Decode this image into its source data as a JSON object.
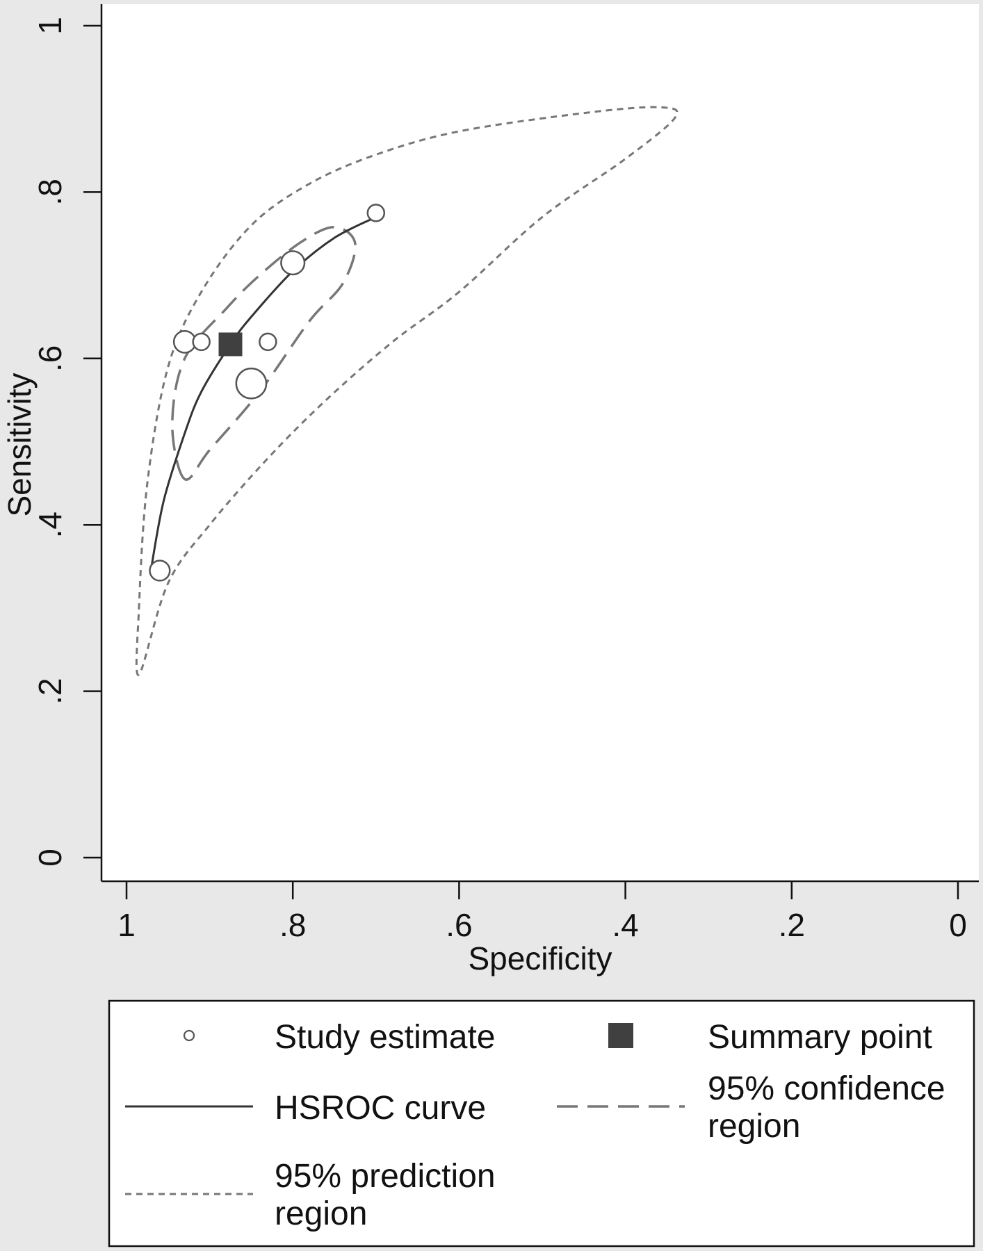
{
  "chart_data": {
    "type": "scatter",
    "title": "",
    "xlabel": "Specificity",
    "ylabel": "Sensitivity",
    "x_reversed": true,
    "xlim": [
      1,
      0
    ],
    "ylim": [
      0,
      1
    ],
    "xticks": [
      1,
      0.8,
      0.6,
      0.4,
      0.2,
      0
    ],
    "xtick_labels": [
      "1",
      ".8",
      ".6",
      ".4",
      ".2",
      "0"
    ],
    "yticks": [
      0,
      0.2,
      0.4,
      0.6,
      0.8,
      1
    ],
    "ytick_labels": [
      "0",
      ".2",
      ".4",
      ".6",
      ".8",
      "1"
    ],
    "grid": false,
    "legend_position": "bottom",
    "colors": {
      "plot_bg": "#ffffff",
      "outer_bg": "#e8e8e8",
      "curve": "#333333",
      "summary": "#404040",
      "regions": "#777777"
    },
    "series": [
      {
        "key": "study",
        "name": "Study estimate",
        "kind": "points",
        "points": [
          {
            "specificity": 0.7,
            "sensitivity": 0.775,
            "weight": 1.0
          },
          {
            "specificity": 0.8,
            "sensitivity": 0.715,
            "weight": 1.4
          },
          {
            "specificity": 0.93,
            "sensitivity": 0.62,
            "weight": 1.3
          },
          {
            "specificity": 0.91,
            "sensitivity": 0.62,
            "weight": 1.0
          },
          {
            "specificity": 0.83,
            "sensitivity": 0.62,
            "weight": 1.0
          },
          {
            "specificity": 0.85,
            "sensitivity": 0.57,
            "weight": 1.8
          },
          {
            "specificity": 0.96,
            "sensitivity": 0.345,
            "weight": 1.2
          }
        ]
      },
      {
        "key": "summary",
        "name": "Summary point",
        "kind": "marker",
        "point": {
          "specificity": 0.875,
          "sensitivity": 0.617
        }
      },
      {
        "key": "hsroc",
        "name": "HSROC curve",
        "kind": "line",
        "points": [
          {
            "specificity": 0.97,
            "sensitivity": 0.35
          },
          {
            "specificity": 0.955,
            "sensitivity": 0.43
          },
          {
            "specificity": 0.93,
            "sensitivity": 0.51
          },
          {
            "specificity": 0.91,
            "sensitivity": 0.56
          },
          {
            "specificity": 0.875,
            "sensitivity": 0.617
          },
          {
            "specificity": 0.85,
            "sensitivity": 0.65
          },
          {
            "specificity": 0.8,
            "sensitivity": 0.705
          },
          {
            "specificity": 0.75,
            "sensitivity": 0.745
          },
          {
            "specificity": 0.7,
            "sensitivity": 0.77
          }
        ]
      },
      {
        "key": "confidence",
        "name": "95% confidence region",
        "kind": "closed-region",
        "points": [
          {
            "specificity": 0.93,
            "sensitivity": 0.455
          },
          {
            "specificity": 0.945,
            "sensitivity": 0.52
          },
          {
            "specificity": 0.93,
            "sensitivity": 0.6
          },
          {
            "specificity": 0.88,
            "sensitivity": 0.66
          },
          {
            "specificity": 0.84,
            "sensitivity": 0.7
          },
          {
            "specificity": 0.79,
            "sensitivity": 0.74
          },
          {
            "specificity": 0.75,
            "sensitivity": 0.758
          },
          {
            "specificity": 0.725,
            "sensitivity": 0.738
          },
          {
            "specificity": 0.74,
            "sensitivity": 0.69
          },
          {
            "specificity": 0.78,
            "sensitivity": 0.645
          },
          {
            "specificity": 0.84,
            "sensitivity": 0.56
          },
          {
            "specificity": 0.9,
            "sensitivity": 0.49
          },
          {
            "specificity": 0.93,
            "sensitivity": 0.455
          }
        ]
      },
      {
        "key": "prediction",
        "name": "95% prediction region",
        "kind": "closed-region",
        "points": [
          {
            "specificity": 0.985,
            "sensitivity": 0.22
          },
          {
            "specificity": 0.985,
            "sensitivity": 0.3
          },
          {
            "specificity": 0.975,
            "sensitivity": 0.45
          },
          {
            "specificity": 0.95,
            "sensitivity": 0.59
          },
          {
            "specificity": 0.91,
            "sensitivity": 0.68
          },
          {
            "specificity": 0.85,
            "sensitivity": 0.76
          },
          {
            "specificity": 0.78,
            "sensitivity": 0.81
          },
          {
            "specificity": 0.7,
            "sensitivity": 0.845
          },
          {
            "specificity": 0.6,
            "sensitivity": 0.873
          },
          {
            "specificity": 0.45,
            "sensitivity": 0.895
          },
          {
            "specificity": 0.36,
            "sensitivity": 0.902
          },
          {
            "specificity": 0.34,
            "sensitivity": 0.89
          },
          {
            "specificity": 0.4,
            "sensitivity": 0.84
          },
          {
            "specificity": 0.5,
            "sensitivity": 0.77
          },
          {
            "specificity": 0.6,
            "sensitivity": 0.68
          },
          {
            "specificity": 0.68,
            "sensitivity": 0.62
          },
          {
            "specificity": 0.76,
            "sensitivity": 0.55
          },
          {
            "specificity": 0.83,
            "sensitivity": 0.48
          },
          {
            "specificity": 0.9,
            "sensitivity": 0.4
          },
          {
            "specificity": 0.95,
            "sensitivity": 0.33
          },
          {
            "specificity": 0.985,
            "sensitivity": 0.22
          }
        ]
      }
    ],
    "legend": [
      {
        "key": "study",
        "lines": [
          "Study estimate"
        ]
      },
      {
        "key": "summary",
        "lines": [
          "Summary point"
        ]
      },
      {
        "key": "hsroc",
        "lines": [
          "HSROC curve"
        ]
      },
      {
        "key": "confidence",
        "lines": [
          "95% confidence",
          "region"
        ]
      },
      {
        "key": "prediction",
        "lines": [
          "95% prediction",
          "region"
        ]
      }
    ]
  }
}
